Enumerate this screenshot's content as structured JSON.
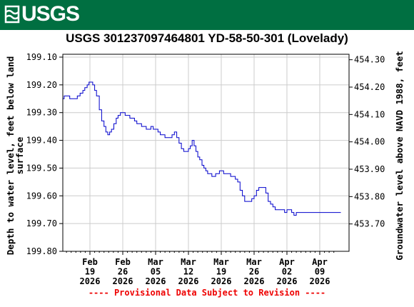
{
  "header": {
    "logo_text": "USGS",
    "logo_icon": "usgs-wave-icon",
    "banner_color": "#006f41"
  },
  "chart_data": {
    "type": "line",
    "title": "USGS 301237097464801 YD-58-50-301 (Lovelady)",
    "ylabel": "Depth to water level, feet below land surface",
    "ylabel_lines": [
      "Depth to water level, feet below land",
      "surface"
    ],
    "y2label": "Groundwater level above NAVD 1988, feet",
    "ylim": [
      199.8,
      199.1
    ],
    "y_ticks": [
      "199.10",
      "199.20",
      "199.30",
      "199.40",
      "199.50",
      "199.60",
      "199.70",
      "199.80"
    ],
    "y2lim": [
      453.6,
      454.32
    ],
    "y2_ticks": [
      "454.30",
      "454.20",
      "454.10",
      "454.00",
      "453.90",
      "453.80",
      "453.70"
    ],
    "x_ticks": [
      {
        "day": 19,
        "lines": [
          "Feb",
          "19",
          "2026"
        ]
      },
      {
        "day": 26,
        "lines": [
          "Feb",
          "26",
          "2026"
        ]
      },
      {
        "day": 33,
        "lines": [
          "Mar",
          "05",
          "2026"
        ]
      },
      {
        "day": 40,
        "lines": [
          "Mar",
          "12",
          "2026"
        ]
      },
      {
        "day": 47,
        "lines": [
          "Mar",
          "19",
          "2026"
        ]
      },
      {
        "day": 54,
        "lines": [
          "Mar",
          "26",
          "2026"
        ]
      },
      {
        "day": 61,
        "lines": [
          "Apr",
          "02",
          "2026"
        ]
      },
      {
        "day": 68,
        "lines": [
          "Apr",
          "09",
          "2026"
        ]
      }
    ],
    "xlim_days": [
      11,
      71
    ],
    "x_unit": "days from 2026-01-31",
    "grid": true,
    "line_color": "#0000cc",
    "series": [
      {
        "name": "Depth to water level",
        "x": [
          11,
          11.8,
          12.5,
          13.0,
          13.5,
          14.0,
          14.7,
          15.3,
          15.8,
          16.3,
          16.9,
          17.5,
          17.9,
          18.4,
          18.8,
          19.2,
          19.6,
          20.0,
          20.4,
          21.0,
          21.5,
          22.0,
          22.4,
          22.8,
          23.2,
          23.6,
          24.1,
          24.6,
          25.0,
          25.5,
          26.0,
          26.5,
          27.0,
          27.5,
          28.0,
          28.5,
          29.0,
          29.5,
          30.0,
          30.5,
          31.0,
          31.5,
          32.0,
          32.5,
          33.0,
          33.5,
          34.0,
          34.5,
          35.0,
          35.5,
          36.0,
          36.5,
          37.0,
          37.5,
          38.0,
          38.5,
          39.0,
          39.5,
          40.0,
          40.4,
          40.8,
          41.2,
          41.6,
          42.0,
          42.4,
          42.9,
          43.3,
          43.7,
          44.1,
          44.5,
          45.0,
          45.4,
          45.8,
          46.2,
          46.6,
          47.0,
          47.5,
          48.0,
          48.5,
          49.0,
          49.5,
          50.0,
          50.5,
          51.0,
          51.5,
          52.0,
          52.5,
          53.0,
          53.5,
          54.0,
          54.5,
          55.0,
          55.5,
          56.0,
          56.5,
          57.0,
          57.5,
          58.0,
          58.5,
          59.0,
          59.5,
          60.0,
          60.5,
          61.0,
          61.5,
          62.0,
          62.5,
          63.0,
          63.5,
          64.0,
          64.5,
          65.0,
          65.5,
          66.0,
          66.5,
          67.0,
          67.5,
          68.0,
          68.5,
          69.0,
          69.5,
          70.0,
          70.5,
          71.0,
          71.8,
          72.5
        ],
        "y": [
          199.29,
          199.29,
          199.28,
          199.25,
          199.24,
          199.24,
          199.25,
          199.25,
          199.25,
          199.24,
          199.23,
          199.22,
          199.21,
          199.2,
          199.19,
          199.19,
          199.2,
          199.22,
          199.24,
          199.29,
          199.33,
          199.35,
          199.37,
          199.38,
          199.37,
          199.36,
          199.34,
          199.32,
          199.31,
          199.3,
          199.3,
          199.31,
          199.31,
          199.32,
          199.32,
          199.33,
          199.34,
          199.34,
          199.35,
          199.35,
          199.36,
          199.36,
          199.35,
          199.36,
          199.36,
          199.37,
          199.38,
          199.38,
          199.39,
          199.39,
          199.39,
          199.38,
          199.37,
          199.39,
          199.41,
          199.43,
          199.44,
          199.44,
          199.43,
          199.42,
          199.4,
          199.42,
          199.44,
          199.46,
          199.47,
          199.49,
          199.5,
          199.51,
          199.52,
          199.52,
          199.53,
          199.53,
          199.52,
          199.52,
          199.51,
          199.51,
          199.52,
          199.52,
          199.52,
          199.53,
          199.53,
          199.54,
          199.55,
          199.58,
          199.6,
          199.62,
          199.62,
          199.62,
          199.61,
          199.6,
          199.58,
          199.57,
          199.57,
          199.57,
          199.59,
          199.62,
          199.63,
          199.64,
          199.65,
          199.65,
          199.65,
          199.65,
          199.66,
          199.65,
          199.65,
          199.66,
          199.67,
          199.66,
          199.66,
          199.66,
          199.66,
          199.66,
          199.66,
          199.66,
          199.66,
          199.66,
          199.66,
          199.66,
          199.66,
          199.66,
          199.66,
          199.66,
          199.66,
          199.66,
          199.66,
          199.66
        ]
      }
    ]
  },
  "footer": {
    "provisional_text": "---- Provisional Data Subject to Revision ----",
    "provisional_color": "#ee0000"
  }
}
